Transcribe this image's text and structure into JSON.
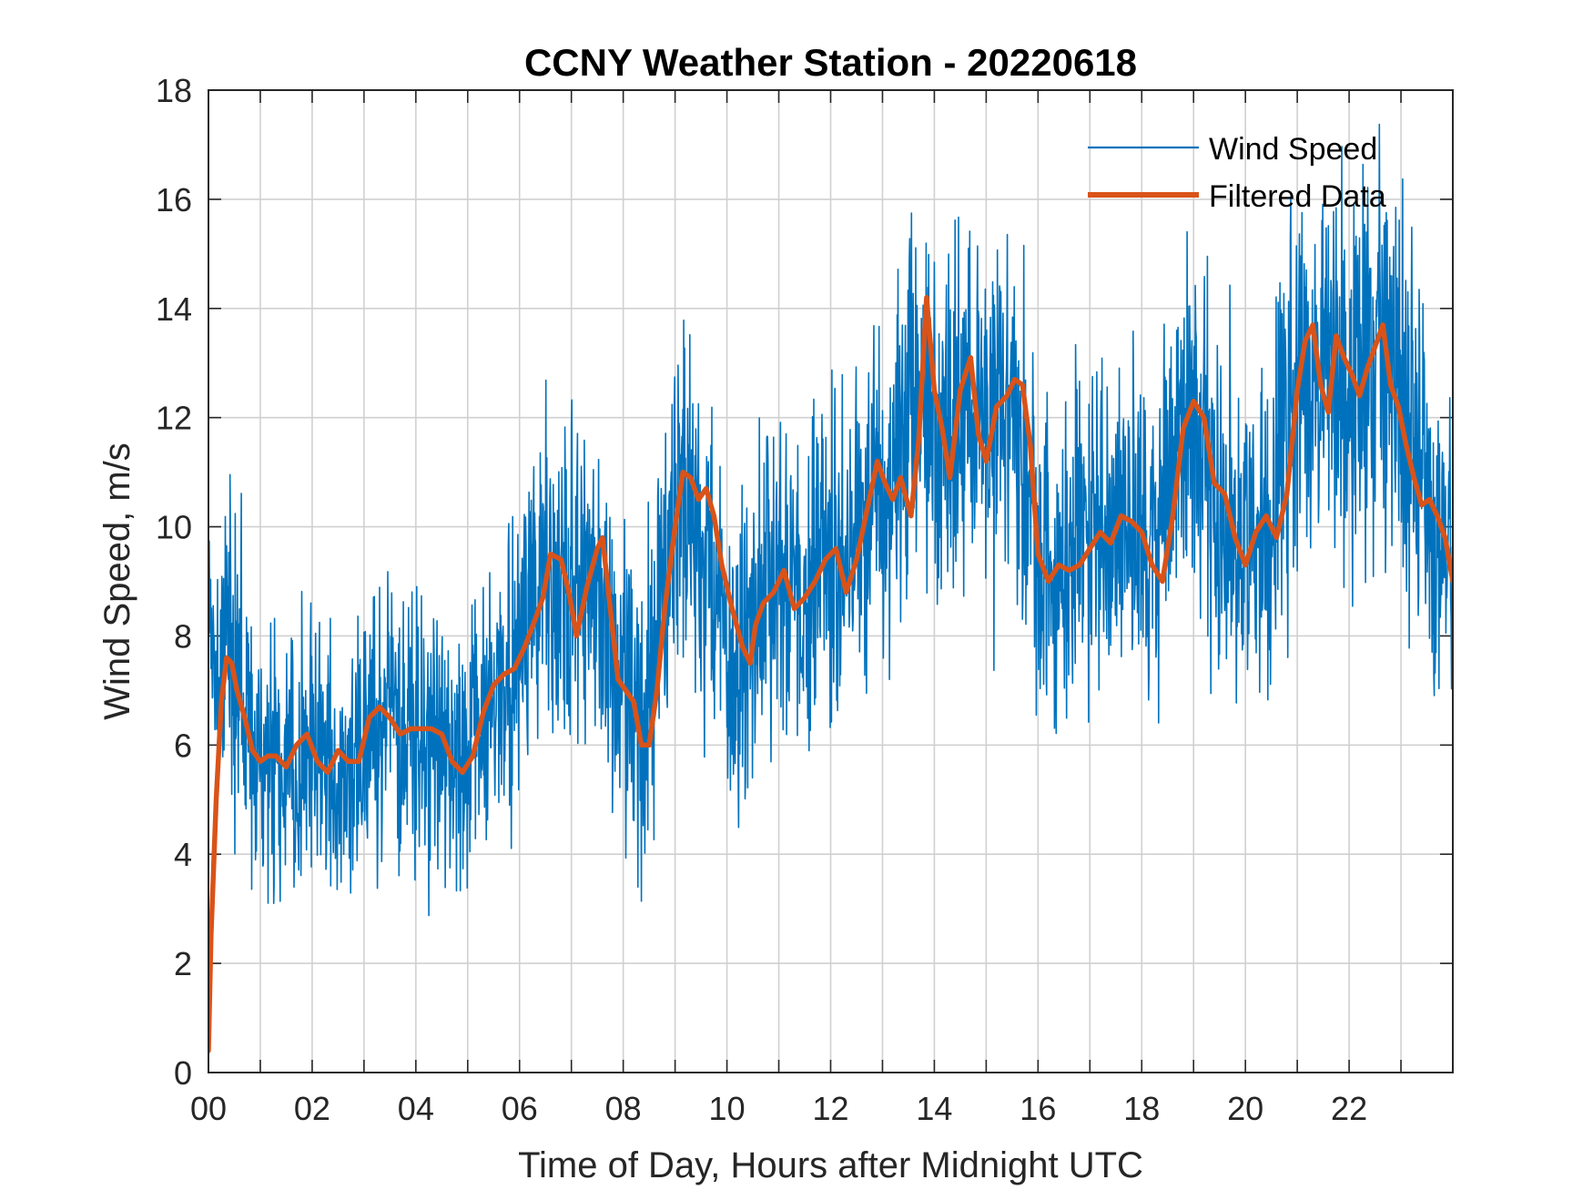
{
  "chart_data": {
    "type": "line",
    "title": "CCNY Weather Station - 20220618",
    "xlabel": "Time of Day, Hours after Midnight UTC",
    "ylabel": "Wind Speed, m/s",
    "xlim": [
      0,
      24
    ],
    "ylim": [
      0,
      18
    ],
    "x_ticks": [
      0,
      2,
      4,
      6,
      8,
      10,
      12,
      14,
      16,
      18,
      20,
      22
    ],
    "x_tick_labels": [
      "00",
      "02",
      "04",
      "06",
      "08",
      "10",
      "12",
      "14",
      "16",
      "18",
      "20",
      "22"
    ],
    "x_minor_grid": [
      1,
      3,
      5,
      7,
      9,
      11,
      13,
      15,
      17,
      19,
      21,
      23
    ],
    "y_ticks": [
      0,
      2,
      4,
      6,
      8,
      10,
      12,
      14,
      16,
      18
    ],
    "y_tick_labels": [
      "0",
      "2",
      "4",
      "6",
      "8",
      "10",
      "12",
      "14",
      "16",
      "18"
    ],
    "grid": true,
    "legend_position": "top-right",
    "series": [
      {
        "name": "Wind Speed",
        "color": "#0072BD",
        "role": "raw",
        "amplitude_hint": 1.5,
        "x": [
          0,
          0.15,
          0.3,
          0.5,
          0.75,
          1.0,
          1.5,
          2.0,
          2.5,
          3.0,
          3.5,
          4.0,
          4.5,
          4.9,
          5.3,
          5.7,
          6.1,
          6.5,
          6.8,
          7.2,
          7.5,
          7.8,
          8.1,
          8.4,
          8.7,
          9.0,
          9.3,
          9.6,
          10.0,
          10.4,
          10.7,
          11.0,
          11.4,
          11.8,
          12.2,
          12.5,
          12.8,
          13.1,
          13.5,
          13.7,
          14.0,
          14.3,
          14.7,
          15.0,
          15.3,
          15.6,
          16.0,
          16.4,
          16.8,
          17.2,
          17.7,
          18.1,
          18.5,
          18.8,
          19.1,
          19.5,
          19.8,
          20.1,
          20.5,
          20.8,
          21.1,
          21.4,
          21.7,
          22.0,
          22.3,
          22.6,
          22.9,
          23.2,
          23.5,
          23.8,
          24
        ],
        "values": [
          7.6,
          7.4,
          7.6,
          7.5,
          6.5,
          5.8,
          5.6,
          5.9,
          5.6,
          6.0,
          6.4,
          6.2,
          6.0,
          5.5,
          6.6,
          7.3,
          8.3,
          9.2,
          8.6,
          8.9,
          9.5,
          7.2,
          6.8,
          6.2,
          8.6,
          10.6,
          10.5,
          9.2,
          8.2,
          7.8,
          8.6,
          8.8,
          8.8,
          9.2,
          9.3,
          10.0,
          10.8,
          10.6,
          11.6,
          13.2,
          11.8,
          12.2,
          12.0,
          11.6,
          12.2,
          12.0,
          9.3,
          9.3,
          9.6,
          9.9,
          10.1,
          9.3,
          10.5,
          11.8,
          11.9,
          10.5,
          9.8,
          9.5,
          10.3,
          11.9,
          13.2,
          12.6,
          13.1,
          12.8,
          12.7,
          13.1,
          12.9,
          11.5,
          10.4,
          10.1,
          8.9
        ]
      },
      {
        "name": "Filtered Data",
        "color": "#D95319",
        "role": "smooth",
        "x": [
          0,
          0.05,
          0.15,
          0.25,
          0.35,
          0.45,
          0.55,
          0.7,
          0.85,
          1.0,
          1.15,
          1.3,
          1.5,
          1.7,
          1.9,
          2.1,
          2.3,
          2.5,
          2.7,
          2.9,
          3.1,
          3.3,
          3.5,
          3.7,
          3.9,
          4.1,
          4.3,
          4.5,
          4.7,
          4.9,
          5.1,
          5.3,
          5.5,
          5.7,
          5.9,
          6.1,
          6.3,
          6.45,
          6.6,
          6.8,
          6.95,
          7.1,
          7.3,
          7.5,
          7.6,
          7.75,
          7.9,
          8.05,
          8.2,
          8.35,
          8.5,
          8.65,
          8.8,
          9.0,
          9.15,
          9.3,
          9.45,
          9.6,
          9.75,
          9.9,
          10.1,
          10.3,
          10.45,
          10.55,
          10.7,
          10.9,
          11.1,
          11.3,
          11.5,
          11.7,
          11.9,
          12.1,
          12.3,
          12.5,
          12.7,
          12.9,
          13.05,
          13.2,
          13.35,
          13.55,
          13.7,
          13.85,
          14.0,
          14.15,
          14.3,
          14.5,
          14.7,
          14.85,
          15.0,
          15.2,
          15.4,
          15.55,
          15.7,
          15.85,
          16.0,
          16.2,
          16.4,
          16.6,
          16.8,
          17.0,
          17.2,
          17.4,
          17.6,
          17.8,
          18.0,
          18.2,
          18.4,
          18.6,
          18.8,
          19.0,
          19.2,
          19.4,
          19.6,
          19.8,
          20.0,
          20.2,
          20.4,
          20.6,
          20.8,
          21.0,
          21.15,
          21.3,
          21.45,
          21.6,
          21.75,
          21.9,
          22.05,
          22.2,
          22.35,
          22.5,
          22.65,
          22.8,
          22.95,
          23.1,
          23.25,
          23.4,
          23.55,
          23.7,
          23.85,
          24.0
        ],
        "values": [
          0.4,
          2.5,
          5.0,
          6.8,
          7.6,
          7.5,
          7.0,
          6.5,
          5.9,
          5.7,
          5.8,
          5.8,
          5.6,
          6.0,
          6.2,
          5.7,
          5.5,
          5.9,
          5.7,
          5.7,
          6.5,
          6.7,
          6.5,
          6.2,
          6.3,
          6.3,
          6.3,
          6.2,
          5.7,
          5.5,
          5.8,
          6.6,
          7.1,
          7.3,
          7.4,
          7.8,
          8.3,
          8.7,
          9.5,
          9.4,
          8.8,
          8.0,
          8.9,
          9.6,
          9.8,
          8.5,
          7.2,
          7.0,
          6.8,
          6.0,
          6.0,
          7.0,
          8.5,
          10.0,
          11.0,
          10.9,
          10.5,
          10.7,
          10.2,
          9.3,
          8.5,
          7.8,
          7.5,
          8.2,
          8.6,
          8.8,
          9.2,
          8.5,
          8.7,
          9.0,
          9.4,
          9.6,
          8.8,
          9.4,
          10.3,
          11.2,
          10.8,
          10.5,
          10.9,
          10.2,
          11.6,
          14.2,
          12.5,
          11.8,
          10.9,
          12.5,
          13.1,
          11.7,
          11.2,
          12.2,
          12.4,
          12.7,
          12.6,
          11.5,
          9.5,
          9.0,
          9.3,
          9.2,
          9.3,
          9.6,
          9.9,
          9.7,
          10.2,
          10.1,
          9.9,
          9.3,
          9.0,
          10.2,
          11.8,
          12.3,
          12.0,
          10.8,
          10.6,
          9.8,
          9.3,
          9.9,
          10.2,
          9.8,
          10.6,
          12.5,
          13.4,
          13.7,
          12.6,
          12.1,
          13.5,
          13.1,
          12.8,
          12.4,
          12.9,
          13.3,
          13.7,
          12.6,
          12.2,
          11.5,
          10.9,
          10.4,
          10.5,
          10.2,
          9.8,
          9.0
        ]
      }
    ]
  }
}
